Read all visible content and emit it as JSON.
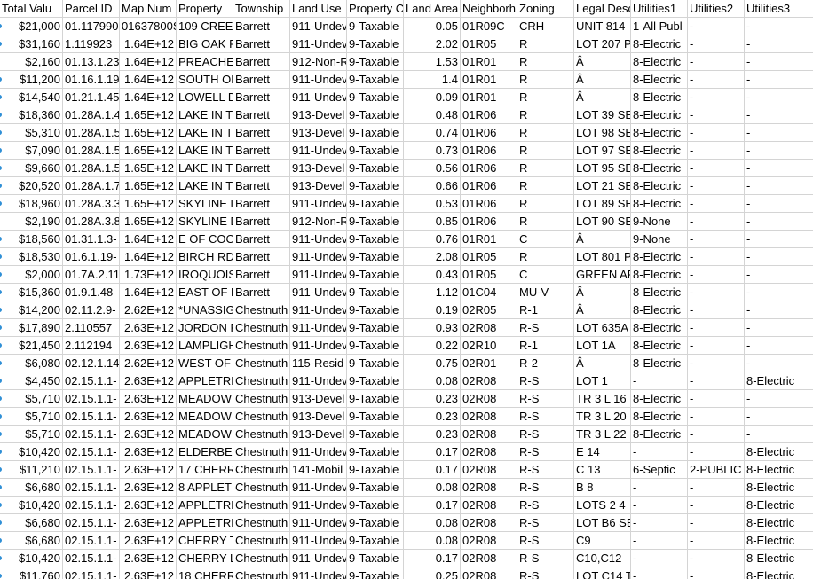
{
  "headers": [
    "Total Valu",
    "Parcel ID",
    "Map Num",
    "Property",
    "Township",
    "Land Use",
    "Property C",
    "Land Area",
    "Neighborh",
    "Zoning",
    "Legal Desc",
    "Utilities1",
    "Utilities2",
    "Utilities3"
  ],
  "rows": [
    {
      "c": [
        "$21,000",
        "01.117990",
        "01637800S",
        "109 CREEK",
        "Barrett",
        "911-Undev",
        "9-Taxable",
        "0.05",
        "01R09C",
        "CRH",
        "UNIT 814",
        "1-All Publ",
        "-",
        "-"
      ],
      "m": true
    },
    {
      "c": [
        "$31,160",
        "1.119923",
        "1.64E+12",
        "BIG OAK R",
        "Barrett",
        "911-Undev",
        "9-Taxable",
        "2.02",
        "01R05",
        "R",
        "LOT 207 PI",
        "8-Electric",
        "-",
        "-"
      ],
      "m": true
    },
    {
      "c": [
        "$2,160",
        "01.13.1.23",
        "1.64E+12",
        "PREACHER",
        "Barrett",
        "912-Non-R",
        "9-Taxable",
        "1.53",
        "01R01",
        "R",
        "Â",
        "8-Electric",
        "-",
        "-"
      ],
      "m": false
    },
    {
      "c": [
        "$11,200",
        "01.16.1.19",
        "1.64E+12",
        "SOUTH OF",
        "Barrett",
        "911-Undev",
        "9-Taxable",
        "1.4",
        "01R01",
        "R",
        "Â",
        "8-Electric",
        "-",
        "-"
      ],
      "m": true
    },
    {
      "c": [
        "$14,540",
        "01.21.1.45",
        "1.64E+12",
        "LOWELL D",
        "Barrett",
        "911-Undev",
        "9-Taxable",
        "0.09",
        "01R01",
        "R",
        "Â",
        "8-Electric",
        "-",
        "-"
      ],
      "m": true
    },
    {
      "c": [
        "$18,360",
        "01.28A.1.4",
        "1.65E+12",
        "LAKE IN TH",
        "Barrett",
        "913-Devel",
        "9-Taxable",
        "0.48",
        "01R06",
        "R",
        "LOT 39 SEC",
        "8-Electric",
        "-",
        "-"
      ],
      "m": true
    },
    {
      "c": [
        "$5,310",
        "01.28A.1.5",
        "1.65E+12",
        "LAKE IN TH",
        "Barrett",
        "913-Devel",
        "9-Taxable",
        "0.74",
        "01R06",
        "R",
        "LOT 98 SEC",
        "8-Electric",
        "-",
        "-"
      ],
      "m": true
    },
    {
      "c": [
        "$7,090",
        "01.28A.1.5",
        "1.65E+12",
        "LAKE IN TH",
        "Barrett",
        "911-Undev",
        "9-Taxable",
        "0.73",
        "01R06",
        "R",
        "LOT 97 SEC",
        "8-Electric",
        "-",
        "-"
      ],
      "m": true
    },
    {
      "c": [
        "$9,660",
        "01.28A.1.5",
        "1.65E+12",
        "LAKE IN TH",
        "Barrett",
        "913-Devel",
        "9-Taxable",
        "0.56",
        "01R06",
        "R",
        "LOT 95 SEC",
        "8-Electric",
        "-",
        "-"
      ],
      "m": true
    },
    {
      "c": [
        "$20,520",
        "01.28A.1.7",
        "1.65E+12",
        "LAKE IN TH",
        "Barrett",
        "913-Devel",
        "9-Taxable",
        "0.66",
        "01R06",
        "R",
        "LOT 21 SEC",
        "8-Electric",
        "-",
        "-"
      ],
      "m": true
    },
    {
      "c": [
        "$18,960",
        "01.28A.3.3",
        "1.65E+12",
        "SKYLINE D",
        "Barrett",
        "911-Undev",
        "9-Taxable",
        "0.53",
        "01R06",
        "R",
        "LOT 89 SEC",
        "8-Electric",
        "-",
        "-"
      ],
      "m": true
    },
    {
      "c": [
        "$2,190",
        "01.28A.3.8",
        "1.65E+12",
        "SKYLINE D",
        "Barrett",
        "912-Non-R",
        "9-Taxable",
        "0.85",
        "01R06",
        "R",
        "LOT 90 SEC",
        "9-None",
        "-",
        "-"
      ],
      "m": false
    },
    {
      "c": [
        "$18,560",
        "01.31.1.3-",
        "1.64E+12",
        "E OF COOL",
        "Barrett",
        "911-Undev",
        "9-Taxable",
        "0.76",
        "01R01",
        "C",
        "Â",
        "9-None",
        "-",
        "-"
      ],
      "m": true
    },
    {
      "c": [
        "$18,530",
        "01.6.1.19-",
        "1.64E+12",
        "BIRCH RD",
        "Barrett",
        "911-Undev",
        "9-Taxable",
        "2.08",
        "01R05",
        "R",
        "LOT 801 PI",
        "8-Electric",
        "-",
        "-"
      ],
      "m": true
    },
    {
      "c": [
        "$2,000",
        "01.7A.2.11",
        "1.73E+12",
        "IROQUOIS",
        "Barrett",
        "911-Undev",
        "9-Taxable",
        "0.43",
        "01R05",
        "C",
        "GREEN AR",
        "8-Electric",
        "-",
        "-"
      ],
      "m": true
    },
    {
      "c": [
        "$15,360",
        "01.9.1.48",
        "1.64E+12",
        "EAST OF P",
        "Barrett",
        "911-Undev",
        "9-Taxable",
        "1.12",
        "01C04",
        "MU-V",
        "Â",
        "8-Electric",
        "-",
        "-"
      ],
      "m": true
    },
    {
      "c": [
        "$14,200",
        "02.11.2.9-",
        "2.62E+12",
        "*UNASSIG",
        "Chestnuth",
        "911-Undev",
        "9-Taxable",
        "0.19",
        "02R05",
        "R-1",
        "Â",
        "8-Electric",
        "-",
        "-"
      ],
      "m": true
    },
    {
      "c": [
        "$17,890",
        "2.110557",
        "2.63E+12",
        "JORDON R",
        "Chestnuth",
        "911-Undev",
        "9-Taxable",
        "0.93",
        "02R08",
        "R-S",
        "LOT 635A",
        "8-Electric",
        "-",
        "-"
      ],
      "m": true
    },
    {
      "c": [
        "$21,450",
        "2.112194",
        "2.63E+12",
        "LAMPLIGH",
        "Chestnuth",
        "911-Undev",
        "9-Taxable",
        "0.22",
        "02R10",
        "R-1",
        "LOT 1A",
        "8-Electric",
        "-",
        "-"
      ],
      "m": true
    },
    {
      "c": [
        "$6,080",
        "02.12.1.14",
        "2.62E+12",
        "WEST OF L",
        "Chestnuth",
        "115-Resid",
        "9-Taxable",
        "0.75",
        "02R01",
        "R-2",
        "Â",
        "8-Electric",
        "-",
        "-"
      ],
      "m": true
    },
    {
      "c": [
        "$4,450",
        "02.15.1.1-",
        "2.63E+12",
        "APPLETRE",
        "Chestnuth",
        "911-Undev",
        "9-Taxable",
        "0.08",
        "02R08",
        "R-S",
        "LOT 1",
        "-",
        "-",
        "8-Electric"
      ],
      "m": true
    },
    {
      "c": [
        "$5,710",
        "02.15.1.1-",
        "2.63E+12",
        "MEADOW",
        "Chestnuth",
        "913-Devel",
        "9-Taxable",
        "0.23",
        "02R08",
        "R-S",
        "TR 3 L 16",
        "8-Electric",
        "-",
        "-"
      ],
      "m": true
    },
    {
      "c": [
        "$5,710",
        "02.15.1.1-",
        "2.63E+12",
        "MEADOW",
        "Chestnuth",
        "913-Devel",
        "9-Taxable",
        "0.23",
        "02R08",
        "R-S",
        "TR 3 L 20",
        "8-Electric",
        "-",
        "-"
      ],
      "m": true
    },
    {
      "c": [
        "$5,710",
        "02.15.1.1-",
        "2.63E+12",
        "MEADOW",
        "Chestnuth",
        "913-Devel",
        "9-Taxable",
        "0.23",
        "02R08",
        "R-S",
        "TR 3 L 22",
        "8-Electric",
        "-",
        "-"
      ],
      "m": true
    },
    {
      "c": [
        "$10,420",
        "02.15.1.1-",
        "2.63E+12",
        "ELDERBER",
        "Chestnuth",
        "911-Undev",
        "9-Taxable",
        "0.17",
        "02R08",
        "R-S",
        "E 14",
        "-",
        "-",
        "8-Electric"
      ],
      "m": true
    },
    {
      "c": [
        "$11,210",
        "02.15.1.1-",
        "2.63E+12",
        "17 CHERRY",
        "Chestnuth",
        "141-Mobil",
        "9-Taxable",
        "0.17",
        "02R08",
        "R-S",
        "C 13",
        "6-Septic",
        "2-PUBLIC W",
        "8-Electric"
      ],
      "m": true
    },
    {
      "c": [
        "$6,680",
        "02.15.1.1-",
        "2.63E+12",
        "8 APPLETR",
        "Chestnuth",
        "911-Undev",
        "9-Taxable",
        "0.08",
        "02R08",
        "R-S",
        "B 8",
        "-",
        "-",
        "8-Electric"
      ],
      "m": true
    },
    {
      "c": [
        "$10,420",
        "02.15.1.1-",
        "2.63E+12",
        "APPLETRE",
        "Chestnuth",
        "911-Undev",
        "9-Taxable",
        "0.17",
        "02R08",
        "R-S",
        "LOTS 2 4",
        "-",
        "-",
        "8-Electric"
      ],
      "m": true
    },
    {
      "c": [
        "$6,680",
        "02.15.1.1-",
        "2.63E+12",
        "APPLETRE",
        "Chestnuth",
        "911-Undev",
        "9-Taxable",
        "0.08",
        "02R08",
        "R-S",
        "LOT B6 SE",
        "-",
        "-",
        "8-Electric"
      ],
      "m": true
    },
    {
      "c": [
        "$6,680",
        "02.15.1.1-",
        "2.63E+12",
        "CHERRY TR",
        "Chestnuth",
        "911-Undev",
        "9-Taxable",
        "0.08",
        "02R08",
        "R-S",
        "C9",
        "-",
        "-",
        "8-Electric"
      ],
      "m": true
    },
    {
      "c": [
        "$10,420",
        "02.15.1.1-",
        "2.63E+12",
        "CHERRY LN",
        "Chestnuth",
        "911-Undev",
        "9-Taxable",
        "0.17",
        "02R08",
        "R-S",
        "C10,C12",
        "-",
        "-",
        "8-Electric"
      ],
      "m": true
    },
    {
      "c": [
        "$11,760",
        "02.15.1.1-",
        "2.63E+12",
        "18 CHERRY",
        "Chestnuth",
        "911-Undev",
        "9-Taxable",
        "0.25",
        "02R08",
        "R-S",
        "LOT C14 TR",
        "-",
        "-",
        "8-Electric"
      ],
      "m": true
    }
  ]
}
